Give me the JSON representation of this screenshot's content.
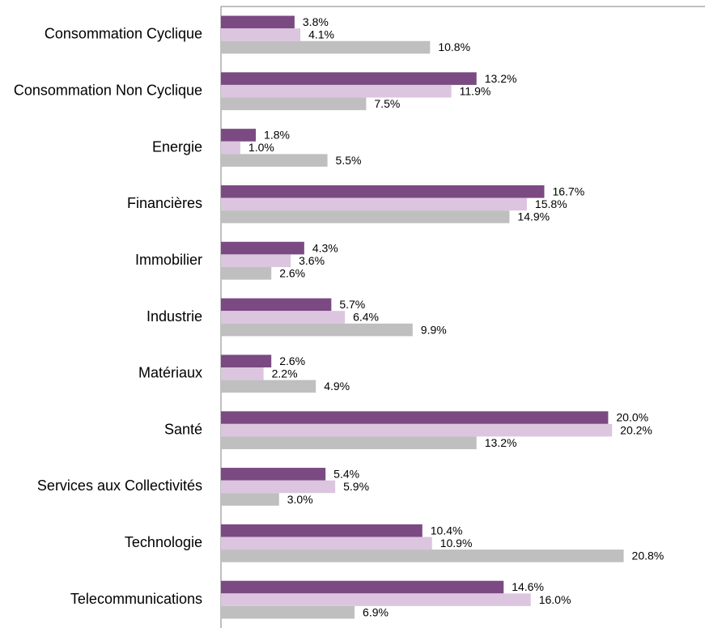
{
  "chart_data": {
    "type": "barh",
    "categories": [
      "Consommation Cyclique",
      "Consommation Non Cyclique",
      "Energie",
      "Financières",
      "Immobilier",
      "Industrie",
      "Matériaux",
      "Santé",
      "Services aux Collectivités",
      "Technologie",
      "Telecommunications"
    ],
    "series": [
      {
        "color": "#7b4a82",
        "values": [
          3.8,
          13.2,
          1.8,
          16.7,
          4.3,
          5.7,
          2.6,
          20.0,
          5.4,
          10.4,
          14.6
        ],
        "value_labels": [
          "3.8%",
          "13.2%",
          "1.8%",
          "16.7%",
          "4.3%",
          "5.7%",
          "2.6%",
          "20.0%",
          "5.4%",
          "10.4%",
          "14.6%"
        ]
      },
      {
        "color": "#dcc5df",
        "values": [
          4.1,
          11.9,
          1.0,
          15.8,
          3.6,
          6.4,
          2.2,
          20.2,
          5.9,
          10.9,
          16.0
        ],
        "value_labels": [
          "4.1%",
          "11.9%",
          "1.0%",
          "15.8%",
          "3.6%",
          "6.4%",
          "2.2%",
          "20.2%",
          "5.9%",
          "10.9%",
          "16.0%"
        ]
      },
      {
        "color": "#bfbfbf",
        "values": [
          10.8,
          7.5,
          5.5,
          14.9,
          2.6,
          9.9,
          4.9,
          13.2,
          3.0,
          20.8,
          6.9
        ],
        "value_labels": [
          "10.8%",
          "7.5%",
          "5.5%",
          "14.9%",
          "2.6%",
          "9.9%",
          "4.9%",
          "13.2%",
          "3.0%",
          "20.8%",
          "6.9%"
        ]
      }
    ],
    "xlim": [
      0,
      25
    ]
  }
}
